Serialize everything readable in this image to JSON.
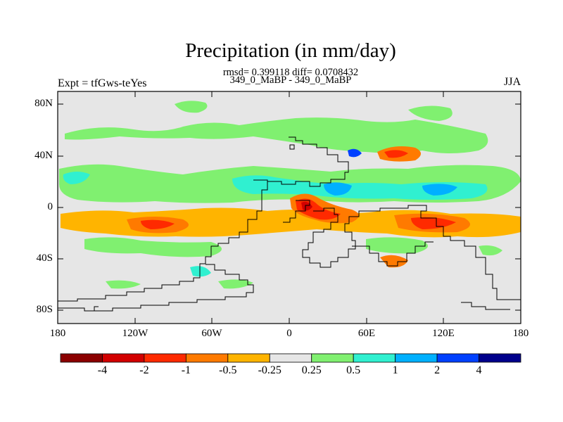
{
  "header": {
    "title": "Precipitation (in mm/day)",
    "stats": "rmsd= 0.399118 diff= 0.0708432",
    "case": "349_0_MaBP - 349_0_MaBP",
    "left_label": "Expt = tfGws-teYes",
    "right_label": "JJA"
  },
  "axes": {
    "lat_ticks": [
      "80N",
      "40N",
      "0",
      "40S",
      "80S"
    ],
    "lon_ticks": [
      "180",
      "120W",
      "60W",
      "0",
      "60E",
      "120E",
      "180"
    ]
  },
  "colorbar": {
    "labels": [
      "-4",
      "-2",
      "-1",
      "-0.5",
      "-0.25",
      "0.25",
      "0.5",
      "1",
      "2",
      "4"
    ],
    "colors": [
      "#8b0000",
      "#d20000",
      "#ff2a00",
      "#ff7a00",
      "#ffb400",
      "#e6e6e6",
      "#80f070",
      "#30f0d0",
      "#00b0ff",
      "#0040ff",
      "#00008b"
    ]
  },
  "map": {
    "background_color": "#e6e6e6",
    "contour_fill_levels": [
      "-4",
      "-2",
      "-1",
      "-0.5",
      "-0.25",
      "0.25",
      "0.5",
      "1",
      "2",
      "4"
    ]
  }
}
